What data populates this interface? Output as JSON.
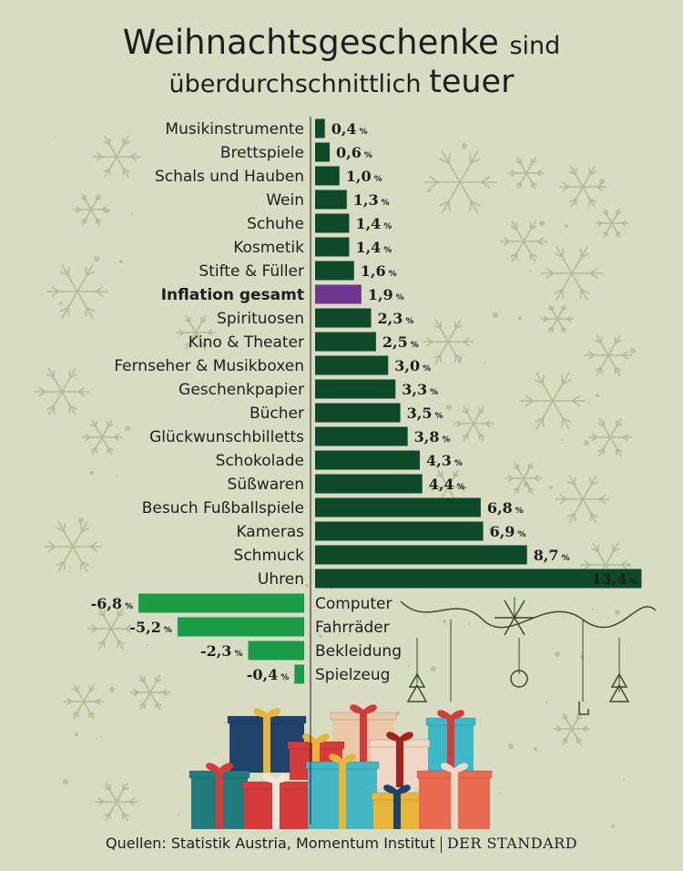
{
  "title": {
    "line1_main": "Weihnachtsgeschenke",
    "line1_small": "sind",
    "line2_small": "überdurchschnittlich",
    "line2_big": "teuer"
  },
  "footer": {
    "source": "Quellen: Statistik Austria, Momentum Institut",
    "brand": "DER STANDARD"
  },
  "colors": {
    "positive": "#0e4a2a",
    "negative": "#1a9b46",
    "highlight": "#70368f",
    "background": "#d8dcc2",
    "decoration": "#a9ae89"
  },
  "chart_data": {
    "type": "bar",
    "orientation": "horizontal",
    "unit": "%",
    "xlim": [
      -6.8,
      13.4
    ],
    "highlight_category": "Inflation gesamt",
    "categories": [
      "Musikinstrumente",
      "Brettspiele",
      "Schals und Hauben",
      "Wein",
      "Schuhe",
      "Kosmetik",
      "Stifte & Füller",
      "Inflation gesamt",
      "Spirituosen",
      "Kino & Theater",
      "Fernseher & Musikboxen",
      "Geschenkpapier",
      "Bücher",
      "Glückwunschbilletts",
      "Schokolade",
      "Süßwaren",
      "Besuch Fußballspiele",
      "Kameras",
      "Schmuck",
      "Uhren",
      "Computer",
      "Fahrräder",
      "Bekleidung",
      "Spielzeug"
    ],
    "values": [
      0.4,
      0.6,
      1.0,
      1.3,
      1.4,
      1.4,
      1.6,
      1.9,
      2.3,
      2.5,
      3.0,
      3.3,
      3.5,
      3.8,
      4.3,
      4.4,
      6.8,
      6.9,
      8.7,
      13.4,
      -6.8,
      -5.2,
      -2.3,
      -0.4
    ],
    "value_labels": [
      "0,4",
      "0,6",
      "1,0",
      "1,3",
      "1,4",
      "1,4",
      "1,6",
      "1,9",
      "2,3",
      "2,5",
      "3,0",
      "3,3",
      "3,5",
      "3,8",
      "4,3",
      "4,4",
      "6,8",
      "6,9",
      "8,7",
      "13,4",
      "-6,8",
      "-5,2",
      "-2,3",
      "-0,4"
    ]
  }
}
